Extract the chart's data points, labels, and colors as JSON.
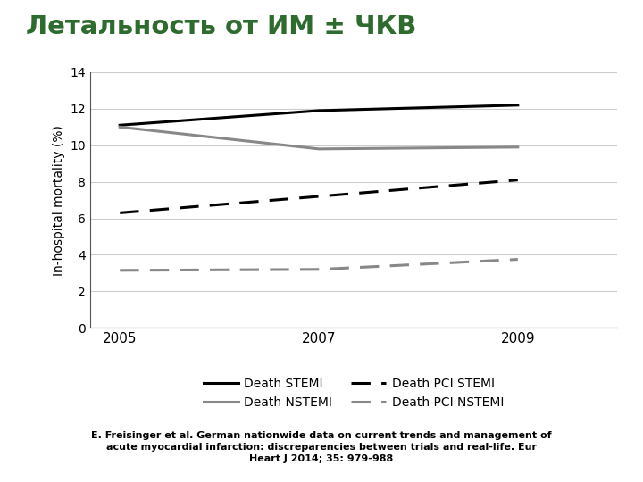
{
  "title": "Летальность от ИМ ± ЧКВ",
  "title_color": "#2E6B2E",
  "ylabel": "In-hospital mortality (%)",
  "xlim": [
    2004.7,
    2010.0
  ],
  "ylim": [
    0,
    14
  ],
  "yticks": [
    0,
    2,
    4,
    6,
    8,
    10,
    12,
    14
  ],
  "xticks": [
    2005,
    2007,
    2009
  ],
  "years": [
    2005,
    2007,
    2009
  ],
  "death_stemi": [
    11.1,
    11.9,
    12.2
  ],
  "death_nstemi": [
    11.0,
    9.8,
    9.9
  ],
  "death_pci_stemi": [
    6.3,
    7.2,
    8.1
  ],
  "death_pci_nstemi": [
    3.15,
    3.2,
    3.75
  ],
  "color_stemi": "#000000",
  "color_nstemi": "#888888",
  "color_pci_stemi": "#000000",
  "color_pci_nstemi": "#888888",
  "background_color": "#ffffff",
  "footer_bg_color": "#E8A020",
  "footer_text": "E. Freisinger et al. German nationwide data on current trends and management of\nacute myocardial infarction: discreparencies between trials and real-life. Eur\nHeart J 2014; 35: 979-988",
  "legend_entries": [
    "Death STEMI",
    "Death NSTEMI",
    "Death PCI STEMI",
    "Death PCI NSTEMI"
  ],
  "linewidth": 2.2
}
